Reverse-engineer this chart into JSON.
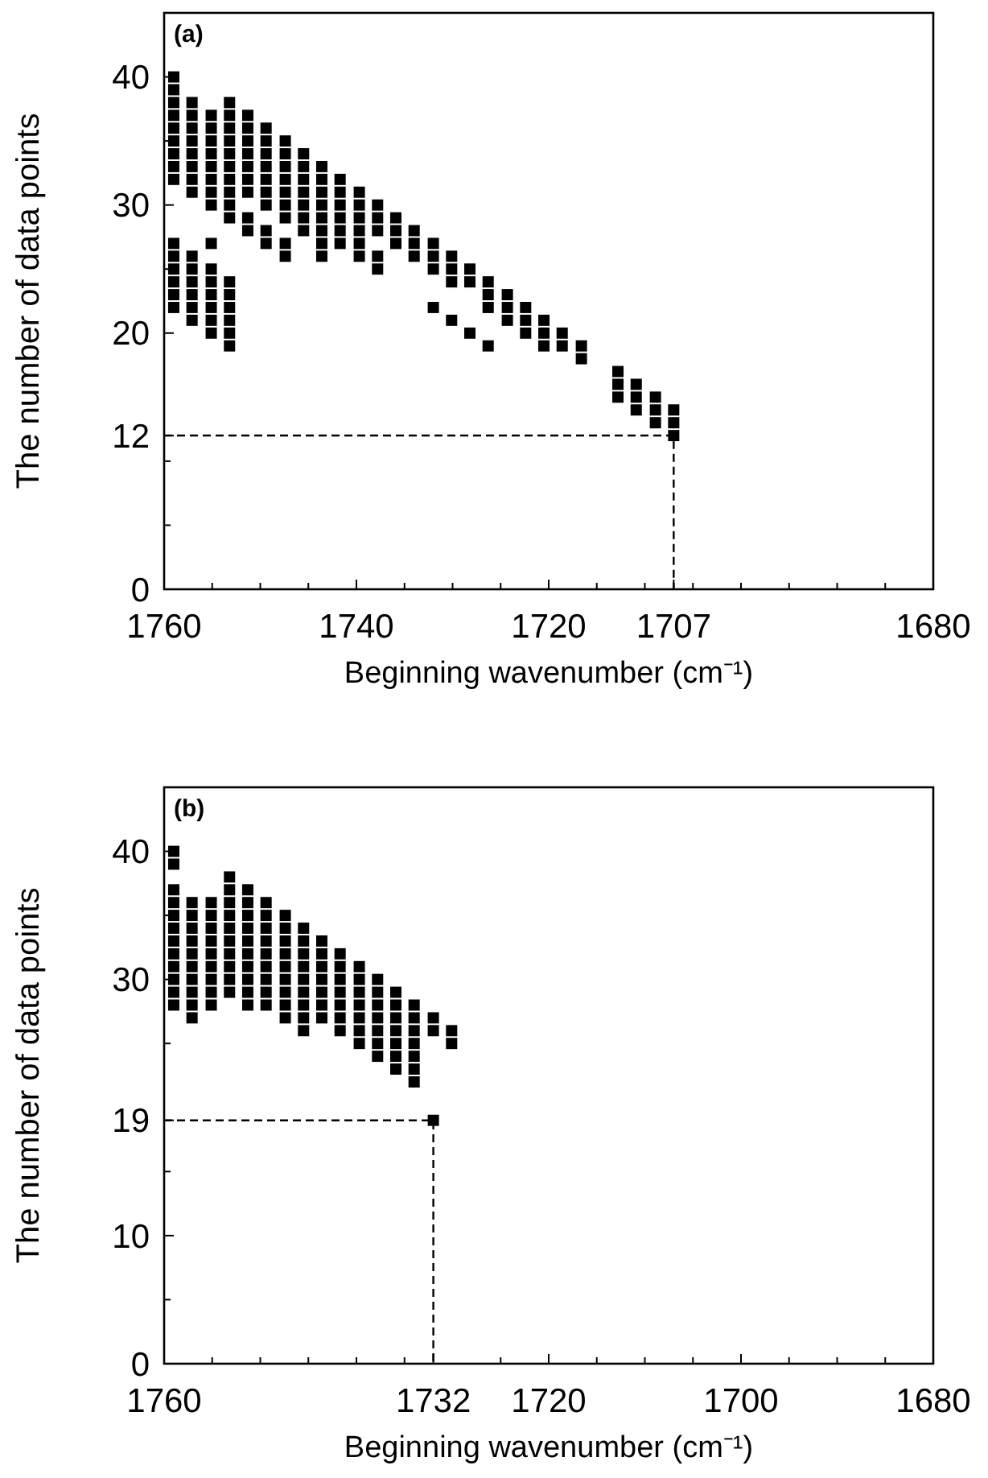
{
  "chart_data": [
    {
      "type": "scatter",
      "xlabel": "Beginning wavenumber (cm⁻¹)",
      "ylabel": "The number of data points",
      "annotations": [
        "(a)"
      ],
      "xlim": [
        1760,
        1680
      ],
      "ylim": [
        0,
        45
      ],
      "xticks": [
        1760,
        {
          "value": 1755,
          "label": null
        },
        {
          "value": 1750,
          "label": null
        },
        {
          "value": 1745,
          "label": null
        },
        1740,
        {
          "value": 1735,
          "label": null
        },
        {
          "value": 1730,
          "label": null
        },
        {
          "value": 1725,
          "label": null
        },
        1720,
        {
          "value": 1715,
          "label": null
        },
        {
          "value": 1710,
          "label": null
        },
        1707,
        {
          "value": 1705,
          "label": null
        },
        {
          "value": 1700,
          "label": null
        },
        {
          "value": 1695,
          "label": null
        },
        {
          "value": 1690,
          "label": null
        },
        {
          "value": 1685,
          "label": null
        },
        1680
      ],
      "yticks": [
        0,
        {
          "value": 5,
          "label": null
        },
        {
          "value": 10,
          "label": null
        },
        12,
        20,
        {
          "value": 25,
          "label": null
        },
        30,
        {
          "value": 35,
          "label": null
        },
        40
      ],
      "line_style": "dashed",
      "series": [
        {
          "color": "#000000",
          "marker": "square",
          "x": [
            1759.0,
            1759.0,
            1759.0,
            1759.0,
            1759.0,
            1759.0,
            1759.0,
            1759.0,
            1759.0,
            1759.0,
            1759.0,
            1759.0,
            1759.0,
            1759.0,
            1759.0,
            1757.1,
            1757.1,
            1757.1,
            1757.1,
            1757.1,
            1757.1,
            1757.1,
            1757.1,
            1757.1,
            1757.1,
            1757.1,
            1757.1,
            1757.1,
            1757.1,
            1755.1,
            1755.1,
            1755.1,
            1755.1,
            1755.1,
            1755.1,
            1755.1,
            1755.1,
            1755.1,
            1755.1,
            1755.1,
            1755.1,
            1755.1,
            1755.1,
            1755.1,
            1753.2,
            1753.2,
            1753.2,
            1753.2,
            1753.2,
            1753.2,
            1753.2,
            1753.2,
            1753.2,
            1753.2,
            1753.2,
            1753.2,
            1753.2,
            1753.2,
            1753.2,
            1753.2,
            1751.3,
            1751.3,
            1751.3,
            1751.3,
            1751.3,
            1751.3,
            1751.3,
            1751.3,
            1751.3,
            1749.4,
            1749.4,
            1749.4,
            1749.4,
            1749.4,
            1749.4,
            1749.4,
            1749.4,
            1749.4,
            1747.4,
            1747.4,
            1747.4,
            1747.4,
            1747.4,
            1747.4,
            1747.4,
            1747.4,
            1747.4,
            1745.5,
            1745.5,
            1745.5,
            1745.5,
            1745.5,
            1745.5,
            1745.5,
            1743.6,
            1743.6,
            1743.6,
            1743.6,
            1743.6,
            1743.6,
            1743.6,
            1743.6,
            1741.7,
            1741.7,
            1741.7,
            1741.7,
            1741.7,
            1741.7,
            1739.7,
            1739.7,
            1739.7,
            1739.7,
            1739.7,
            1739.7,
            1737.8,
            1737.8,
            1737.8,
            1737.8,
            1737.8,
            1735.9,
            1735.9,
            1735.9,
            1734.0,
            1734.0,
            1734.0,
            1732.0,
            1732.0,
            1732.0,
            1732.0,
            1730.1,
            1730.1,
            1730.1,
            1730.1,
            1728.2,
            1728.2,
            1728.2,
            1726.3,
            1726.3,
            1726.3,
            1726.3,
            1724.3,
            1724.3,
            1724.3,
            1722.4,
            1722.4,
            1722.4,
            1720.5,
            1720.5,
            1720.5,
            1718.6,
            1718.6,
            1716.6,
            1716.6,
            1712.8,
            1712.8,
            1712.8,
            1710.9,
            1710.9,
            1710.9,
            1708.9,
            1708.9,
            1708.9,
            1707.0,
            1707.0,
            1707.0
          ],
          "values": [
            22,
            23,
            24,
            25,
            26,
            27,
            32,
            33,
            34,
            35,
            36,
            37,
            38,
            39,
            40,
            21,
            22,
            23,
            24,
            25,
            26,
            31,
            32,
            33,
            34,
            35,
            36,
            37,
            38,
            20,
            21,
            22,
            23,
            24,
            25,
            27,
            30,
            31,
            32,
            33,
            34,
            35,
            36,
            37,
            19,
            20,
            21,
            22,
            23,
            24,
            29,
            30,
            31,
            32,
            33,
            34,
            35,
            36,
            37,
            38,
            28,
            29,
            31,
            32,
            33,
            34,
            35,
            36,
            37,
            27,
            28,
            30,
            31,
            32,
            33,
            34,
            35,
            36,
            26,
            27,
            29,
            30,
            31,
            32,
            33,
            34,
            35,
            28,
            29,
            30,
            31,
            32,
            33,
            34,
            26,
            27,
            28,
            29,
            30,
            31,
            32,
            33,
            27,
            28,
            29,
            30,
            31,
            32,
            26,
            27,
            28,
            29,
            30,
            31,
            25,
            26,
            28,
            29,
            30,
            27,
            28,
            29,
            26,
            27,
            28,
            22,
            25,
            26,
            27,
            21,
            24,
            25,
            26,
            20,
            24,
            25,
            19,
            22,
            23,
            24,
            21,
            22,
            23,
            20,
            21,
            22,
            19,
            20,
            21,
            19,
            20,
            18,
            19,
            15,
            16,
            17,
            14,
            15,
            16,
            13,
            14,
            15,
            12,
            13,
            14
          ]
        },
        {
          "type": "line",
          "color": "#000000",
          "x": [
            1760,
            1707,
            1707
          ],
          "values": [
            12,
            12,
            0
          ]
        }
      ]
    },
    {
      "type": "scatter",
      "xlabel": "Beginning wavenumber (cm⁻¹)",
      "ylabel": "The number of data points",
      "annotations": [
        "(b)"
      ],
      "xlim": [
        1760,
        1680
      ],
      "ylim": [
        0,
        45
      ],
      "xticks": [
        1760,
        {
          "value": 1755,
          "label": null
        },
        {
          "value": 1750,
          "label": null
        },
        {
          "value": 1745,
          "label": null
        },
        {
          "value": 1740,
          "label": null
        },
        {
          "value": 1735,
          "label": null
        },
        1732,
        {
          "value": 1725,
          "label": null
        },
        1720,
        {
          "value": 1715,
          "label": null
        },
        {
          "value": 1710,
          "label": null
        },
        {
          "value": 1705,
          "label": null
        },
        1700,
        {
          "value": 1695,
          "label": null
        },
        {
          "value": 1690,
          "label": null
        },
        {
          "value": 1685,
          "label": null
        },
        1680
      ],
      "yticks": [
        0,
        {
          "value": 5,
          "label": null
        },
        10,
        {
          "value": 15,
          "label": null
        },
        19,
        {
          "value": 25,
          "label": null
        },
        30,
        {
          "value": 35,
          "label": null
        },
        40
      ],
      "line_style": "dashed",
      "series": [
        {
          "color": "#000000",
          "marker": "square",
          "x": [
            1759.0,
            1759.0,
            1759.0,
            1759.0,
            1759.0,
            1759.0,
            1759.0,
            1759.0,
            1759.0,
            1759.0,
            1759.0,
            1759.0,
            1757.1,
            1757.1,
            1757.1,
            1757.1,
            1757.1,
            1757.1,
            1757.1,
            1757.1,
            1757.1,
            1757.1,
            1755.1,
            1755.1,
            1755.1,
            1755.1,
            1755.1,
            1755.1,
            1755.1,
            1755.1,
            1755.1,
            1753.2,
            1753.2,
            1753.2,
            1753.2,
            1753.2,
            1753.2,
            1753.2,
            1753.2,
            1753.2,
            1753.2,
            1751.3,
            1751.3,
            1751.3,
            1751.3,
            1751.3,
            1751.3,
            1751.3,
            1751.3,
            1751.3,
            1751.3,
            1749.4,
            1749.4,
            1749.4,
            1749.4,
            1749.4,
            1749.4,
            1749.4,
            1749.4,
            1749.4,
            1747.4,
            1747.4,
            1747.4,
            1747.4,
            1747.4,
            1747.4,
            1747.4,
            1747.4,
            1747.4,
            1745.5,
            1745.5,
            1745.5,
            1745.5,
            1745.5,
            1745.5,
            1745.5,
            1745.5,
            1745.5,
            1743.6,
            1743.6,
            1743.6,
            1743.6,
            1743.6,
            1743.6,
            1743.6,
            1741.7,
            1741.7,
            1741.7,
            1741.7,
            1741.7,
            1741.7,
            1741.7,
            1739.7,
            1739.7,
            1739.7,
            1739.7,
            1739.7,
            1739.7,
            1739.7,
            1737.8,
            1737.8,
            1737.8,
            1737.8,
            1737.8,
            1737.8,
            1737.8,
            1735.9,
            1735.9,
            1735.9,
            1735.9,
            1735.9,
            1735.9,
            1735.9,
            1734.0,
            1734.0,
            1734.0,
            1734.0,
            1734.0,
            1734.0,
            1734.0,
            1732.0,
            1732.0,
            1732.0,
            1730.1,
            1730.1
          ],
          "values": [
            28,
            29,
            30,
            31,
            32,
            33,
            34,
            35,
            36,
            37,
            39,
            40,
            27,
            28,
            29,
            30,
            31,
            32,
            33,
            34,
            35,
            36,
            28,
            29,
            30,
            31,
            32,
            33,
            34,
            35,
            36,
            29,
            30,
            31,
            32,
            33,
            34,
            35,
            36,
            37,
            38,
            28,
            29,
            30,
            31,
            32,
            33,
            34,
            35,
            36,
            37,
            28,
            29,
            30,
            31,
            32,
            33,
            34,
            35,
            36,
            27,
            28,
            29,
            30,
            31,
            32,
            33,
            34,
            35,
            26,
            27,
            28,
            29,
            30,
            31,
            32,
            33,
            34,
            27,
            28,
            29,
            30,
            31,
            32,
            33,
            26,
            27,
            28,
            29,
            30,
            31,
            32,
            25,
            26,
            27,
            28,
            29,
            30,
            31,
            24,
            25,
            26,
            27,
            28,
            29,
            30,
            23,
            24,
            25,
            26,
            27,
            28,
            29,
            22,
            23,
            24,
            25,
            26,
            27,
            28,
            19,
            26,
            27,
            25,
            26
          ]
        },
        {
          "type": "line",
          "color": "#000000",
          "x": [
            1760,
            1732,
            1732
          ],
          "values": [
            19,
            19,
            0
          ]
        }
      ]
    }
  ]
}
